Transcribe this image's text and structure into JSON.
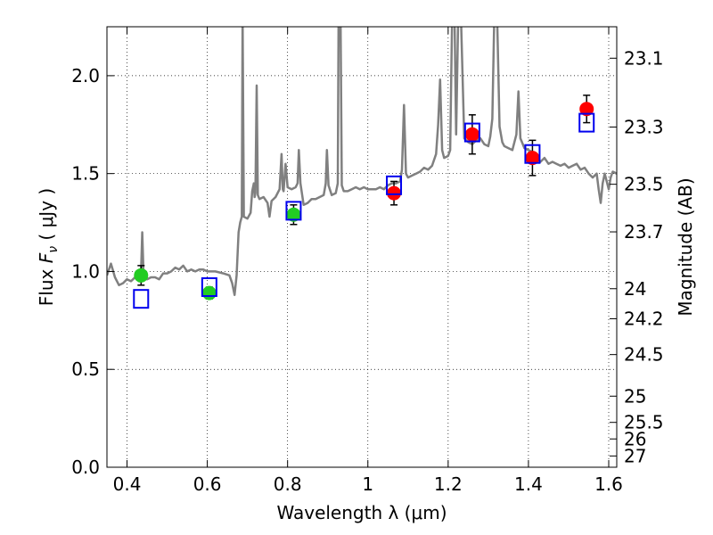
{
  "chart_data": {
    "type": "scatter",
    "xlabel": "Wavelength  λ (μm)",
    "ylabel": "Flux  F_ν  ( μJy )",
    "ylabel_parts": {
      "prefix": "Flux  ",
      "symbol": "F",
      "subscript": "ν",
      "units": "  ( μJy )"
    },
    "y2label": "Magnitude (AB)",
    "xlim": [
      0.35,
      1.62
    ],
    "ylim": [
      0.0,
      2.25
    ],
    "grid": true,
    "xticks": [
      {
        "value": 0.4,
        "label": "0.4"
      },
      {
        "value": 0.6,
        "label": "0.6"
      },
      {
        "value": 0.8,
        "label": "0.8"
      },
      {
        "value": 1.0,
        "label": "1"
      },
      {
        "value": 1.2,
        "label": "1.2"
      },
      {
        "value": 1.4,
        "label": "1.4"
      },
      {
        "value": 1.6,
        "label": "1.6"
      }
    ],
    "yticks": [
      {
        "value": 0.0,
        "label": "0.0"
      },
      {
        "value": 0.5,
        "label": "0.5"
      },
      {
        "value": 1.0,
        "label": "1.0"
      },
      {
        "value": 1.5,
        "label": "1.5"
      },
      {
        "value": 2.0,
        "label": "2.0"
      }
    ],
    "y2ticks": [
      {
        "value": 23.1,
        "label": "23.1"
      },
      {
        "value": 23.3,
        "label": "23.3"
      },
      {
        "value": 23.5,
        "label": "23.5"
      },
      {
        "value": 23.7,
        "label": "23.7"
      },
      {
        "value": 24.0,
        "label": "24"
      },
      {
        "value": 24.2,
        "label": "24.2"
      },
      {
        "value": 24.5,
        "label": "24.5"
      },
      {
        "value": 25.0,
        "label": "25"
      },
      {
        "value": 25.5,
        "label": "25.5"
      },
      {
        "value": 26.0,
        "label": "26"
      },
      {
        "value": 27.0,
        "label": "27"
      }
    ],
    "series": [
      {
        "kind": "line",
        "color": "#808080",
        "points": [
          [
            0.35,
            0.98
          ],
          [
            0.36,
            1.04
          ],
          [
            0.37,
            0.97
          ],
          [
            0.38,
            0.93
          ],
          [
            0.39,
            0.94
          ],
          [
            0.4,
            0.96
          ],
          [
            0.41,
            0.95
          ],
          [
            0.42,
            0.97
          ],
          [
            0.43,
            0.95
          ],
          [
            0.435,
            1.0
          ],
          [
            0.438,
            1.2
          ],
          [
            0.441,
            0.99
          ],
          [
            0.45,
            0.96
          ],
          [
            0.46,
            0.97
          ],
          [
            0.47,
            0.97
          ],
          [
            0.48,
            0.96
          ],
          [
            0.49,
            0.99
          ],
          [
            0.5,
            0.99
          ],
          [
            0.51,
            1.0
          ],
          [
            0.52,
            1.02
          ],
          [
            0.53,
            1.01
          ],
          [
            0.54,
            1.03
          ],
          [
            0.55,
            1.0
          ],
          [
            0.56,
            1.01
          ],
          [
            0.57,
            1.0
          ],
          [
            0.58,
            1.01
          ],
          [
            0.59,
            1.01
          ],
          [
            0.6,
            1.0
          ],
          [
            0.62,
            1.0
          ],
          [
            0.64,
            0.99
          ],
          [
            0.655,
            0.98
          ],
          [
            0.662,
            0.94
          ],
          [
            0.668,
            0.88
          ],
          [
            0.673,
            0.98
          ],
          [
            0.678,
            1.2
          ],
          [
            0.682,
            1.25
          ],
          [
            0.686,
            1.28
          ],
          [
            0.688,
            2.3
          ],
          [
            0.691,
            1.28
          ],
          [
            0.7,
            1.27
          ],
          [
            0.708,
            1.3
          ],
          [
            0.712,
            1.41
          ],
          [
            0.716,
            1.45
          ],
          [
            0.718,
            1.38
          ],
          [
            0.72,
            1.4
          ],
          [
            0.723,
            1.95
          ],
          [
            0.726,
            1.39
          ],
          [
            0.73,
            1.37
          ],
          [
            0.74,
            1.38
          ],
          [
            0.75,
            1.35
          ],
          [
            0.755,
            1.28
          ],
          [
            0.76,
            1.36
          ],
          [
            0.77,
            1.38
          ],
          [
            0.78,
            1.42
          ],
          [
            0.785,
            1.6
          ],
          [
            0.788,
            1.42
          ],
          [
            0.79,
            1.41
          ],
          [
            0.795,
            1.55
          ],
          [
            0.8,
            1.43
          ],
          [
            0.81,
            1.42
          ],
          [
            0.82,
            1.43
          ],
          [
            0.825,
            1.45
          ],
          [
            0.828,
            1.62
          ],
          [
            0.832,
            1.45
          ],
          [
            0.84,
            1.34
          ],
          [
            0.85,
            1.35
          ],
          [
            0.86,
            1.37
          ],
          [
            0.87,
            1.37
          ],
          [
            0.88,
            1.38
          ],
          [
            0.89,
            1.39
          ],
          [
            0.895,
            1.45
          ],
          [
            0.898,
            1.62
          ],
          [
            0.902,
            1.44
          ],
          [
            0.91,
            1.39
          ],
          [
            0.92,
            1.4
          ],
          [
            0.925,
            1.45
          ],
          [
            0.927,
            2.3
          ],
          [
            0.932,
            2.3
          ],
          [
            0.935,
            1.44
          ],
          [
            0.94,
            1.41
          ],
          [
            0.95,
            1.41
          ],
          [
            0.96,
            1.42
          ],
          [
            0.97,
            1.43
          ],
          [
            0.98,
            1.42
          ],
          [
            0.99,
            1.43
          ],
          [
            1.0,
            1.42
          ],
          [
            1.01,
            1.42
          ],
          [
            1.02,
            1.42
          ],
          [
            1.03,
            1.43
          ],
          [
            1.04,
            1.42
          ],
          [
            1.05,
            1.44
          ],
          [
            1.06,
            1.45
          ],
          [
            1.07,
            1.45
          ],
          [
            1.08,
            1.46
          ],
          [
            1.085,
            1.52
          ],
          [
            1.09,
            1.85
          ],
          [
            1.095,
            1.5
          ],
          [
            1.1,
            1.48
          ],
          [
            1.11,
            1.49
          ],
          [
            1.12,
            1.5
          ],
          [
            1.13,
            1.51
          ],
          [
            1.14,
            1.53
          ],
          [
            1.15,
            1.52
          ],
          [
            1.16,
            1.54
          ],
          [
            1.17,
            1.6
          ],
          [
            1.175,
            1.75
          ],
          [
            1.18,
            1.98
          ],
          [
            1.185,
            1.62
          ],
          [
            1.19,
            1.58
          ],
          [
            1.2,
            1.59
          ],
          [
            1.205,
            1.62
          ],
          [
            1.21,
            2.3
          ],
          [
            1.216,
            2.3
          ],
          [
            1.22,
            1.7
          ],
          [
            1.225,
            2.3
          ],
          [
            1.232,
            2.3
          ],
          [
            1.24,
            1.68
          ],
          [
            1.25,
            1.66
          ],
          [
            1.26,
            1.65
          ],
          [
            1.27,
            1.67
          ],
          [
            1.28,
            1.68
          ],
          [
            1.29,
            1.65
          ],
          [
            1.3,
            1.64
          ],
          [
            1.305,
            1.69
          ],
          [
            1.31,
            1.78
          ],
          [
            1.315,
            2.3
          ],
          [
            1.322,
            2.3
          ],
          [
            1.328,
            1.74
          ],
          [
            1.335,
            1.66
          ],
          [
            1.34,
            1.64
          ],
          [
            1.35,
            1.63
          ],
          [
            1.36,
            1.62
          ],
          [
            1.37,
            1.7
          ],
          [
            1.375,
            1.92
          ],
          [
            1.38,
            1.68
          ],
          [
            1.39,
            1.63
          ],
          [
            1.4,
            1.62
          ],
          [
            1.41,
            1.61
          ],
          [
            1.42,
            1.58
          ],
          [
            1.43,
            1.56
          ],
          [
            1.44,
            1.58
          ],
          [
            1.45,
            1.55
          ],
          [
            1.46,
            1.56
          ],
          [
            1.47,
            1.55
          ],
          [
            1.48,
            1.54
          ],
          [
            1.49,
            1.55
          ],
          [
            1.5,
            1.53
          ],
          [
            1.51,
            1.54
          ],
          [
            1.52,
            1.55
          ],
          [
            1.53,
            1.52
          ],
          [
            1.54,
            1.53
          ],
          [
            1.55,
            1.5
          ],
          [
            1.56,
            1.48
          ],
          [
            1.57,
            1.5
          ],
          [
            1.575,
            1.42
          ],
          [
            1.58,
            1.35
          ],
          [
            1.585,
            1.45
          ],
          [
            1.59,
            1.5
          ],
          [
            1.6,
            1.42
          ],
          [
            1.605,
            1.48
          ],
          [
            1.61,
            1.51
          ],
          [
            1.62,
            1.5
          ]
        ]
      },
      {
        "kind": "points",
        "marker": "circle",
        "color": "#22cc22",
        "points": [
          {
            "x": 0.435,
            "y": 0.98,
            "err": 0.05
          },
          {
            "x": 0.605,
            "y": 0.89,
            "err": 0.03
          },
          {
            "x": 0.815,
            "y": 1.29,
            "err": 0.05
          }
        ]
      },
      {
        "kind": "points",
        "marker": "circle",
        "color": "#ff0000",
        "points": [
          {
            "x": 1.065,
            "y": 1.4,
            "err": 0.06
          },
          {
            "x": 1.26,
            "y": 1.7,
            "err": 0.1
          },
          {
            "x": 1.41,
            "y": 1.58,
            "err": 0.09
          },
          {
            "x": 1.545,
            "y": 1.83,
            "err": 0.07
          }
        ]
      },
      {
        "kind": "points",
        "marker": "open-square",
        "color": "#0000ee",
        "points": [
          {
            "x": 0.435,
            "y": 0.86
          },
          {
            "x": 0.605,
            "y": 0.92
          },
          {
            "x": 0.815,
            "y": 1.31
          },
          {
            "x": 1.065,
            "y": 1.44
          },
          {
            "x": 1.26,
            "y": 1.71
          },
          {
            "x": 1.41,
            "y": 1.6
          },
          {
            "x": 1.545,
            "y": 1.76
          }
        ]
      }
    ]
  }
}
